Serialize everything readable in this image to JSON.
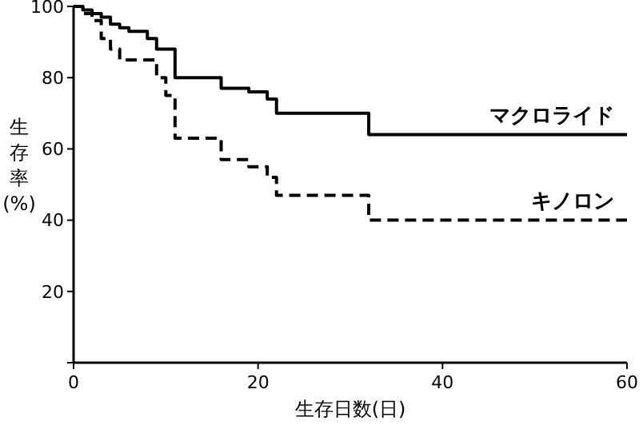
{
  "chart_data": {
    "type": "step",
    "xlabel": "生存日数(日)",
    "ylabel": "生存率(%)",
    "xlim": [
      0,
      60
    ],
    "ylim": [
      0,
      100
    ],
    "xticks": [
      0,
      20,
      40,
      60
    ],
    "yticks": [
      {
        "value": 0,
        "label": null
      },
      20,
      40,
      60,
      80,
      100
    ],
    "grid": false,
    "marker": "none",
    "series": [
      {
        "name": "マクロライド",
        "color": "#000000",
        "line_style": "solid",
        "x": [
          0,
          1,
          2,
          3,
          4,
          5,
          6,
          8,
          9,
          11,
          16,
          19,
          21,
          22,
          32,
          60
        ],
        "values": [
          100,
          99,
          98,
          97,
          95,
          94,
          93,
          91,
          88,
          80,
          77,
          76,
          74,
          70,
          64,
          64
        ]
      },
      {
        "name": "キノロン",
        "color": "#000000",
        "line_style": "dashed",
        "x": [
          0,
          1,
          2,
          3,
          4,
          5,
          9,
          10,
          11,
          16,
          19,
          21,
          22,
          32,
          60
        ],
        "values": [
          100,
          98,
          96,
          91,
          88,
          85,
          80,
          75,
          63,
          57,
          55,
          52,
          47,
          40,
          40
        ]
      }
    ]
  }
}
